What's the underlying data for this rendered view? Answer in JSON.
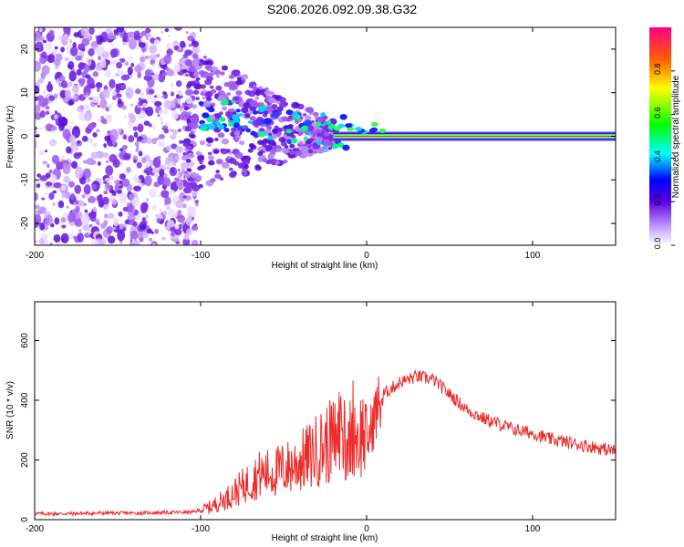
{
  "title": "S206.2026.092.09.38.G32",
  "colors": {
    "snr_line": "#ee2a2a",
    "points": "#7a2ae6"
  },
  "chart_data": [
    {
      "type": "heatmap",
      "xlabel": "Height of straight line (km)",
      "ylabel": "Frequency (Hz)",
      "xlim": [
        -200,
        150
      ],
      "ylim": [
        -25,
        25
      ],
      "xticks": [
        -200,
        -100,
        0,
        100
      ],
      "yticks": [
        -20,
        -10,
        0,
        10,
        20
      ],
      "colorbar": {
        "label": "Normalized spectral amplitude",
        "range": [
          0,
          1
        ],
        "ticks": [
          "0.0",
          "0.2",
          "0.4",
          "0.6",
          "0.8"
        ]
      },
      "feature": {
        "carrier_frequency_hz": 0,
        "noise_region_km": [
          -200,
          -100
        ],
        "scintillation_region_km": [
          -100,
          -20
        ],
        "clean_region_km": [
          -20,
          150
        ]
      }
    },
    {
      "type": "line",
      "xlabel": "Height of straight line (km)",
      "ylabel": "SNR (10 * v/v)",
      "xlim": [
        -200,
        150
      ],
      "ylim": [
        0,
        730
      ],
      "xticks": [
        -200,
        -100,
        0,
        100
      ],
      "yticks": [
        0,
        200,
        400,
        600
      ],
      "series": [
        {
          "name": "SNR",
          "x": [
            -200,
            -180,
            -160,
            -140,
            -120,
            -105,
            -95,
            -85,
            -75,
            -65,
            -55,
            -45,
            -35,
            -28,
            -22,
            -18,
            -15,
            -12,
            -8,
            -5,
            -2,
            0,
            5,
            10,
            20,
            30,
            40,
            50,
            60,
            70,
            80,
            90,
            100,
            110,
            120,
            130,
            140,
            150
          ],
          "y": [
            20,
            20,
            22,
            22,
            24,
            25,
            40,
            70,
            110,
            150,
            160,
            180,
            210,
            240,
            260,
            280,
            320,
            250,
            320,
            270,
            300,
            250,
            350,
            420,
            460,
            480,
            470,
            420,
            370,
            340,
            320,
            300,
            290,
            270,
            260,
            250,
            240,
            230
          ]
        }
      ]
    }
  ]
}
